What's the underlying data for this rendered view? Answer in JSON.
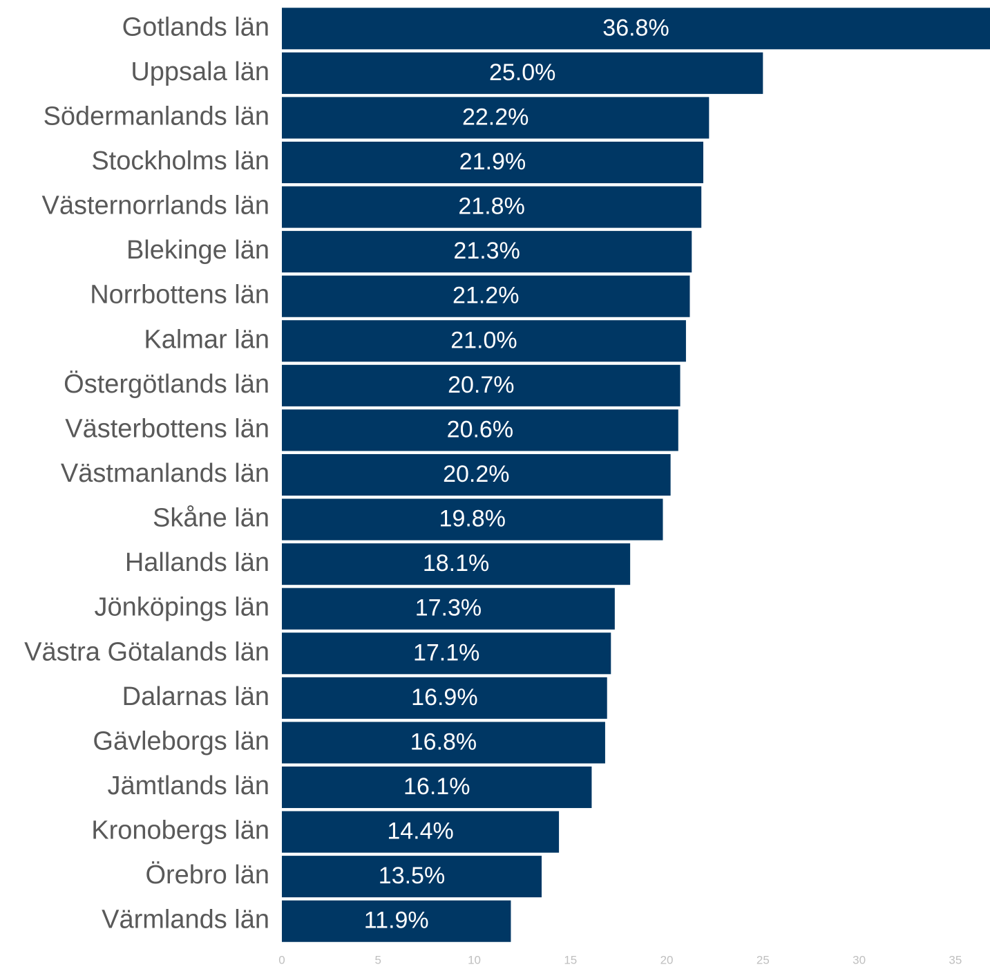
{
  "chart_data": {
    "type": "bar",
    "orientation": "horizontal",
    "categories": [
      "Gotlands län",
      "Uppsala län",
      "Södermanlands län",
      "Stockholms län",
      "Västernorrlands län",
      "Blekinge län",
      "Norrbottens län",
      "Kalmar län",
      "Östergötlands län",
      "Västerbottens län",
      "Västmanlands län",
      "Skåne län",
      "Hallands län",
      "Jönköpings län",
      "Västra Götalands län",
      "Dalarnas län",
      "Gävleborgs län",
      "Jämtlands län",
      "Kronobergs län",
      "Örebro län",
      "Värmlands län"
    ],
    "values": [
      36.8,
      25.0,
      22.2,
      21.9,
      21.8,
      21.3,
      21.2,
      21.0,
      20.7,
      20.6,
      20.2,
      19.8,
      18.1,
      17.3,
      17.1,
      16.9,
      16.8,
      16.1,
      14.4,
      13.5,
      11.9
    ],
    "value_labels": [
      "36.8%",
      "25.0%",
      "22.2%",
      "21.9%",
      "21.8%",
      "21.3%",
      "21.2%",
      "21.0%",
      "20.7%",
      "20.6%",
      "20.2%",
      "19.8%",
      "18.1%",
      "17.3%",
      "17.1%",
      "16.9%",
      "16.8%",
      "16.1%",
      "14.4%",
      "13.5%",
      "11.9%"
    ],
    "color": "#003764",
    "xlim": [
      0,
      36.8
    ],
    "xticks": [
      0,
      5,
      10,
      15,
      20,
      25,
      30,
      35
    ],
    "grid": false
  }
}
